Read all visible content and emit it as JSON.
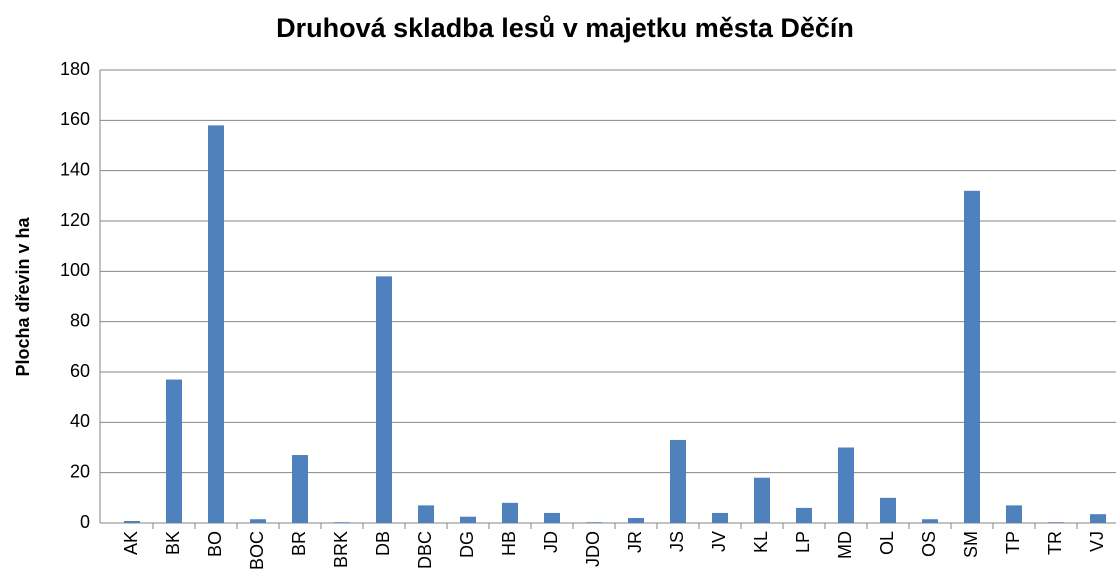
{
  "chart_data": {
    "type": "bar",
    "title": "Druhová skladba lesů v majetku města Děčín",
    "ylabel": "Plocha dřevin v ha",
    "categories": [
      "AK",
      "BK",
      "BO",
      "BOC",
      "BR",
      "BRK",
      "DB",
      "DBC",
      "DG",
      "HB",
      "JD",
      "JDO",
      "JR",
      "JS",
      "JV",
      "KL",
      "LP",
      "MD",
      "OL",
      "OS",
      "SM",
      "TP",
      "TR",
      "VJ"
    ],
    "values": [
      0.8,
      57,
      158,
      1.5,
      27,
      0.3,
      98,
      7,
      2.5,
      8,
      4,
      0.3,
      2,
      33,
      4,
      18,
      6,
      30,
      10,
      1.5,
      132,
      7,
      0.3,
      3.5
    ],
    "color": "#4f81bd",
    "ylim": [
      0,
      180
    ],
    "yticks": [
      0,
      20,
      40,
      60,
      80,
      100,
      120,
      140,
      160,
      180
    ],
    "grid": true
  }
}
